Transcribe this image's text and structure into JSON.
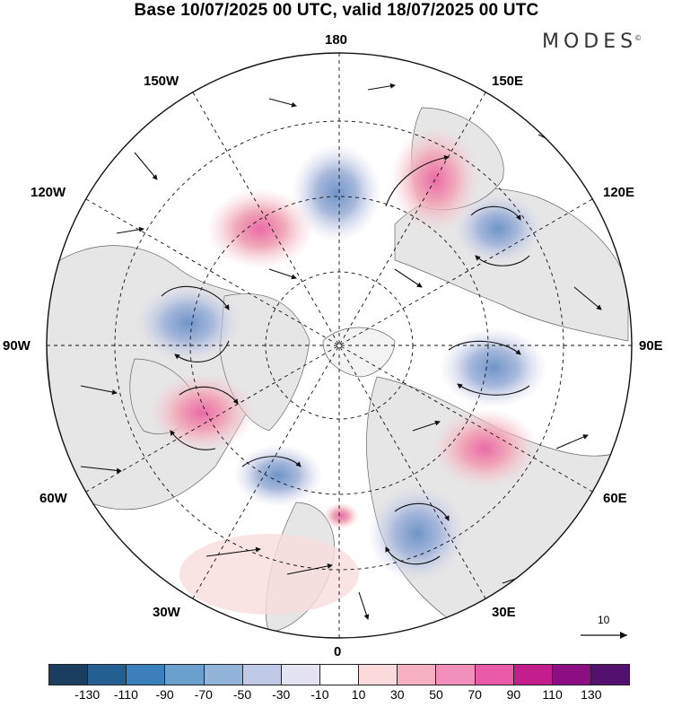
{
  "title": "Base 10/07/2025 00 UTC, valid 18/07/2025 00 UTC",
  "brand": "MODES",
  "brand_mark": "©",
  "map": {
    "projection": "north polar stereographic",
    "longitude_labels": {
      "top": "180",
      "top_left": "150W",
      "top_right": "150E",
      "upper_left": "120W",
      "upper_right": "120E",
      "left": "90W",
      "right": "90E",
      "lower_left": "60W",
      "lower_right": "60E",
      "bottom_left": "30W",
      "bottom_right": "30E",
      "bottom": "0"
    },
    "reference_vector_label": "10",
    "colors": {
      "land": "#e6e6e6",
      "coast": "#555555",
      "neg": "#8fa7cf",
      "pos": "#e99aa9"
    }
  },
  "colorbar": {
    "colors": [
      "#1b3e60",
      "#245f92",
      "#3b80ba",
      "#6aa0cd",
      "#93b4d9",
      "#bfcbe6",
      "#e4e3f1",
      "#ffffff",
      "#fadada",
      "#f7b0c2",
      "#f290bb",
      "#e95aa8",
      "#c41e8c",
      "#8b0f83",
      "#54106f"
    ],
    "tick_labels": [
      "-130",
      "-110",
      "-90",
      "-70",
      "-50",
      "-30",
      "-10",
      "10",
      "30",
      "50",
      "70",
      "90",
      "110",
      "130"
    ]
  }
}
